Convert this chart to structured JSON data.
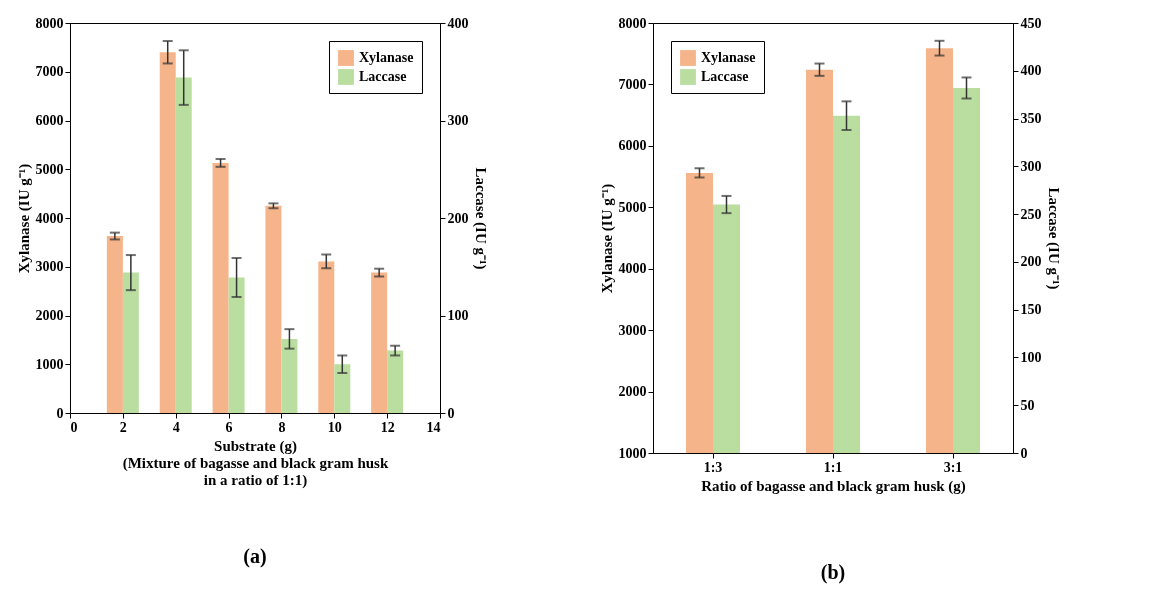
{
  "chart_data": [
    {
      "type": "bar",
      "title": "(a)",
      "xlabel": "Substrate (g)\n(Mixture of bagasse and black gram husk\nin a ratio of 1:1)",
      "ylabel": "Xylanase (IU g⁻¹)",
      "y2label": "Laccase (IU g⁻¹)",
      "x": [
        2,
        4,
        6,
        8,
        10,
        12
      ],
      "xlim": [
        0,
        14
      ],
      "xticks": [
        0,
        2,
        4,
        6,
        8,
        10,
        12,
        14
      ],
      "ylim": [
        0,
        8000
      ],
      "yticks": [
        0,
        1000,
        2000,
        3000,
        4000,
        5000,
        6000,
        7000,
        8000
      ],
      "y2lim": [
        0,
        400
      ],
      "y2ticks": [
        0,
        100,
        200,
        300,
        400
      ],
      "grid": false,
      "legend": "top right",
      "series": [
        {
          "name": "Xylanase",
          "color": "#f6b48a",
          "values": [
            3630,
            7400,
            5130,
            4250,
            3110,
            2880
          ],
          "errors": [
            70,
            230,
            80,
            50,
            140,
            80
          ]
        },
        {
          "name": "Laccase",
          "color": "#b9dea0",
          "axis": "y2",
          "values": [
            144,
            344,
            139,
            76,
            50,
            64
          ],
          "errors": [
            18,
            28,
            20,
            10,
            9,
            5
          ]
        }
      ]
    },
    {
      "type": "bar",
      "title": "(b)",
      "xlabel": "Ratio of bagasse and black gram husk (g)",
      "ylabel": "Xylanase (IU g⁻¹)",
      "y2label": "Laccase (IU g⁻¹)",
      "categories": [
        "1:3",
        "1:1",
        "3:1"
      ],
      "ylim": [
        1000,
        8000
      ],
      "yticks": [
        1000,
        2000,
        3000,
        4000,
        5000,
        6000,
        7000,
        8000
      ],
      "y2lim": [
        0,
        450
      ],
      "y2ticks": [
        0,
        50,
        100,
        150,
        200,
        250,
        300,
        350,
        400,
        450
      ],
      "grid": false,
      "legend": "top left",
      "series": [
        {
          "name": "Xylanase",
          "color": "#f6b48a",
          "values": [
            5560,
            7240,
            7590
          ],
          "errors": [
            75,
            100,
            120
          ]
        },
        {
          "name": "Laccase",
          "color": "#b9dea0",
          "axis": "y2",
          "values": [
            260,
            353,
            382
          ],
          "errors": [
            9,
            15,
            11
          ]
        }
      ]
    }
  ]
}
